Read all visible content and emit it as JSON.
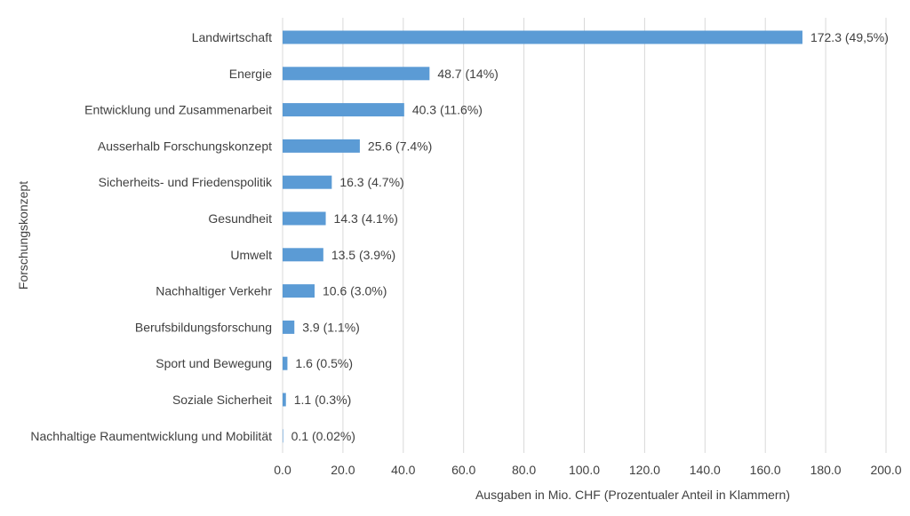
{
  "chart_data": {
    "type": "bar",
    "orientation": "horizontal",
    "title": "",
    "xlabel": "Ausgaben in Mio. CHF (Prozentualer Anteil in Klammern)",
    "ylabel": "Forschungskonzept",
    "xlim": [
      0,
      200
    ],
    "xticks": [
      "0.0",
      "20.0",
      "40.0",
      "60.0",
      "80.0",
      "100.0",
      "120.0",
      "140.0",
      "160.0",
      "180.0",
      "200.0"
    ],
    "grid": true,
    "color": "#5b9bd5",
    "categories": [
      "Landwirtschaft",
      "Energie",
      "Entwicklung und Zusammenarbeit",
      "Ausserhalb Forschungskonzept",
      "Sicherheits- und Friedenspolitik",
      "Gesundheit",
      "Umwelt",
      "Nachhaltiger Verkehr",
      "Berufsbildungsforschung",
      "Sport und Bewegung",
      "Soziale Sicherheit",
      "Nachhaltige Raumentwicklung und Mobilität"
    ],
    "values": [
      172.3,
      48.7,
      40.3,
      25.6,
      16.3,
      14.3,
      13.5,
      10.6,
      3.9,
      1.6,
      1.1,
      0.1
    ],
    "data_labels": [
      "172.3 (49,5%)",
      "48.7 (14%)",
      "40.3 (11.6%)",
      "25.6 (7.4%)",
      "16.3 (4.7%)",
      "14.3 (4.1%)",
      "13.5 (3.9%)",
      "10.6 (3.0%)",
      "3.9 (1.1%)",
      "1.6 (0.5%)",
      "1.1 (0.3%)",
      "0.1 (0.02%)"
    ]
  }
}
